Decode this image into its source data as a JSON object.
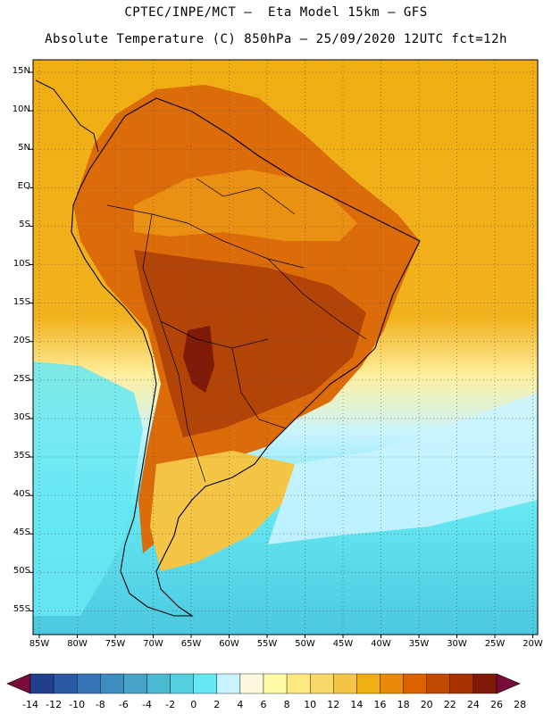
{
  "header": {
    "line1": "CPTEC/INPE/MCT —  Eta Model 15km — GFS",
    "line2": "Absolute Temperature (C) 850hPa — 25/09/2020 12UTC fct=12h"
  },
  "map": {
    "latitude_labels": [
      "15N",
      "10N",
      "5N",
      "EQ",
      "5S",
      "10S",
      "15S",
      "20S",
      "25S",
      "30S",
      "35S",
      "40S",
      "45S",
      "50S",
      "55S"
    ],
    "longitude_labels": [
      "85W",
      "80W",
      "75W",
      "70W",
      "65W",
      "60W",
      "55W",
      "50W",
      "45W",
      "40W",
      "35W",
      "30W",
      "25W",
      "20W"
    ],
    "lat_range": [
      15,
      -55
    ],
    "lon_range": [
      -85,
      -20
    ]
  },
  "colorbar": {
    "ticks": [
      "-14",
      "-12",
      "-10",
      "-8",
      "-6",
      "-4",
      "-2",
      "0",
      "2",
      "4",
      "6",
      "8",
      "10",
      "12",
      "14",
      "16",
      "18",
      "20",
      "22",
      "24",
      "26",
      "28"
    ],
    "colors": [
      "#7a0a3a",
      "#213f8c",
      "#2a5aa6",
      "#3774b5",
      "#3f8cc0",
      "#47a4c9",
      "#4cb9d2",
      "#55cfe0",
      "#66e8f2",
      "#c8f3ff",
      "#fff8e0",
      "#fffaa8",
      "#ffe880",
      "#f8d868",
      "#f5c546",
      "#f0ae12",
      "#e88a08",
      "#dc6200",
      "#c04a00",
      "#a83100",
      "#7f1a08",
      "#7a0a3a"
    ]
  }
}
